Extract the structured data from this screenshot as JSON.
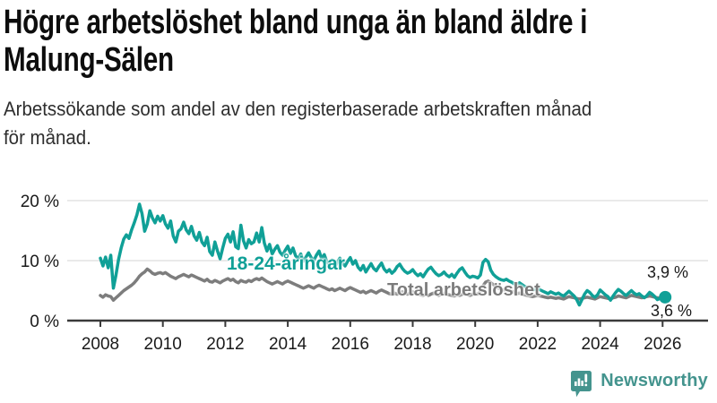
{
  "header": {
    "title_lines": [
      "Högre arbetslöshet bland unga än bland äldre i",
      "Malung-Sälen"
    ],
    "subtitle_lines": [
      "Arbetssökande som andel av den registerbaserade arbetskraften månad",
      "för månad."
    ]
  },
  "footer": {
    "brand": "Newsworthy",
    "brand_color": "#44948e"
  },
  "chart_data": {
    "type": "line",
    "title": "Högre arbetslöshet bland unga än bland äldre i Malung-Sälen",
    "subtitle": "Arbetssökande som andel av den registerbaserade arbetskraften månad för månad.",
    "x_unit": "month",
    "x_start_year": 2008,
    "x_end_label_values": [
      "3,9 %",
      "3,6 %"
    ],
    "x_ticks": [
      2008,
      2010,
      2012,
      2014,
      2016,
      2018,
      2020,
      2022,
      2024,
      2026
    ],
    "x_ticklabels": [
      "2008",
      "2010",
      "2012",
      "2014",
      "2016",
      "2018",
      "2020",
      "2022",
      "2024",
      "2026"
    ],
    "y_ticks": [
      0,
      10,
      20
    ],
    "y_ticklabels": [
      "0 %",
      "10 %",
      "20 %"
    ],
    "ylim": [
      0,
      21.5
    ],
    "grid": "horizontal",
    "legend_position": "inline-labels",
    "series": [
      {
        "name": "18-24-åringar",
        "color": "#10a097",
        "end_label": "3,9 %",
        "end_dot": true,
        "values": [
          10.4,
          9.1,
          10.6,
          8.8,
          10.9,
          5.4,
          7.6,
          10.2,
          12.1,
          13.6,
          14.3,
          13.7,
          15.1,
          16.3,
          17.6,
          19.4,
          17.8,
          14.9,
          16.1,
          18.3,
          17.1,
          16.3,
          17.4,
          16.6,
          17.5,
          16.1,
          15.4,
          16.6,
          14.1,
          13.1,
          14.9,
          15.3,
          16.4,
          15.1,
          14.5,
          15.7,
          14.1,
          13.4,
          14.7,
          13.1,
          12.5,
          13.9,
          11.5,
          10.9,
          13.1,
          11.6,
          10.3,
          12.1,
          13.7,
          14.4,
          13.1,
          14.8,
          12.3,
          12.0,
          15.9,
          13.3,
          12.1,
          13.5,
          12.8,
          13.1,
          14.6,
          13.1,
          15.5,
          12.9,
          11.6,
          12.7,
          11.1,
          11.9,
          12.5,
          11.4,
          10.9,
          11.7,
          12.4,
          11.2,
          12.1,
          10.8,
          10.3,
          11.1,
          9.9,
          10.6,
          11.3,
          10.5,
          10.0,
          10.9,
          11.6,
          10.3,
          11.0,
          9.8,
          9.3,
          10.1,
          8.9,
          9.7,
          10.4,
          9.6,
          9.1,
          9.9,
          10.5,
          9.4,
          10.0,
          8.9,
          8.4,
          9.2,
          8.1,
          8.8,
          9.5,
          8.7,
          8.3,
          9.0,
          9.6,
          8.6,
          8.1,
          8.5,
          7.9,
          8.3,
          9.0,
          9.4,
          8.7,
          8.2,
          7.9,
          8.1,
          8.5,
          7.9,
          7.5,
          7.8,
          7.3,
          8.0,
          8.6,
          8.9,
          8.3,
          7.8,
          7.5,
          7.7,
          8.1,
          7.6,
          7.3,
          7.7,
          7.2,
          7.9,
          8.5,
          8.8,
          8.1,
          7.5,
          7.2,
          7.4,
          7.3,
          7.1,
          7.6,
          9.7,
          10.2,
          9.8,
          8.4,
          7.7,
          7.3,
          7.0,
          6.8,
          6.7,
          6.9,
          6.6,
          6.4,
          6.1,
          5.9,
          6.3,
          6.0,
          5.7,
          5.5,
          5.3,
          5.1,
          5.2,
          5.4,
          5.1,
          4.9,
          4.7,
          4.5,
          4.8,
          4.6,
          4.4,
          4.6,
          4.3,
          4.1,
          4.5,
          4.9,
          4.5,
          4.1,
          3.5,
          2.6,
          3.5,
          4.4,
          5.0,
          4.7,
          4.2,
          3.9,
          4.3,
          5.1,
          4.7,
          4.3,
          4.0,
          3.4,
          4.1,
          4.7,
          5.2,
          4.9,
          4.5,
          4.2,
          4.6,
          5.0,
          4.6,
          4.3,
          4.5,
          4.1,
          3.8,
          4.2,
          4.7,
          4.4,
          4.0,
          3.5,
          3.7,
          3.6,
          3.9
        ]
      },
      {
        "name": "Total arbetslöshet",
        "color": "#7d7d7d",
        "end_label": "3,6 %",
        "end_dot": false,
        "values": [
          4.2,
          3.9,
          4.3,
          4.1,
          4.0,
          3.4,
          3.8,
          4.2,
          4.6,
          5.0,
          5.3,
          5.6,
          5.9,
          6.3,
          6.8,
          7.4,
          7.8,
          8.1,
          8.6,
          8.3,
          7.9,
          7.7,
          7.9,
          8.0,
          7.8,
          8.0,
          7.7,
          7.4,
          7.2,
          7.0,
          7.3,
          7.5,
          7.7,
          7.5,
          7.3,
          7.6,
          7.4,
          7.2,
          7.0,
          6.8,
          6.6,
          6.9,
          6.5,
          6.4,
          6.7,
          6.5,
          6.3,
          6.6,
          6.8,
          7.0,
          6.7,
          6.9,
          6.5,
          6.3,
          6.7,
          6.5,
          6.4,
          6.7,
          6.5,
          6.8,
          7.0,
          6.8,
          7.1,
          6.8,
          6.5,
          6.3,
          6.1,
          6.3,
          6.5,
          6.3,
          6.1,
          6.4,
          6.6,
          6.4,
          6.2,
          6.0,
          5.8,
          5.6,
          5.4,
          5.6,
          5.8,
          5.6,
          5.4,
          5.7,
          5.9,
          5.7,
          5.5,
          5.3,
          5.1,
          5.3,
          5.0,
          5.2,
          5.4,
          5.2,
          5.0,
          5.3,
          5.5,
          5.3,
          5.1,
          4.9,
          4.7,
          4.9,
          4.6,
          4.8,
          5.0,
          4.8,
          4.6,
          4.9,
          5.1,
          4.9,
          4.7,
          4.5,
          4.4,
          4.6,
          4.4,
          4.6,
          4.8,
          4.6,
          4.4,
          4.6,
          4.8,
          4.6,
          4.4,
          4.3,
          4.2,
          4.4,
          4.2,
          4.4,
          4.6,
          4.4,
          4.2,
          4.4,
          4.6,
          4.4,
          4.3,
          4.2,
          4.1,
          4.3,
          4.2,
          4.4,
          4.5,
          4.3,
          4.2,
          4.4,
          4.5,
          4.4,
          4.8,
          5.8,
          6.4,
          6.6,
          6.3,
          6.0,
          5.7,
          5.4,
          5.2,
          5.1,
          5.2,
          5.0,
          4.9,
          4.7,
          4.5,
          4.6,
          4.4,
          4.3,
          4.2,
          4.1,
          4.0,
          4.1,
          4.2,
          4.1,
          4.0,
          3.9,
          3.8,
          3.9,
          3.8,
          3.7,
          3.8,
          3.7,
          3.6,
          3.8,
          4.0,
          3.9,
          3.8,
          3.7,
          3.6,
          3.7,
          3.8,
          3.9,
          3.8,
          3.7,
          3.6,
          3.8,
          4.0,
          3.9,
          3.8,
          3.7,
          3.6,
          3.8,
          3.9,
          4.1,
          4.0,
          3.9,
          3.8,
          4.0,
          4.2,
          4.1,
          4.0,
          3.9,
          3.8,
          3.9,
          4.0,
          4.1,
          4.0,
          3.9,
          3.8,
          3.7,
          3.6,
          3.6
        ]
      }
    ]
  },
  "layout_colors": {
    "gridline": "#e3e3e3",
    "axis": "#3a3a3a",
    "tick_label": "#1a1a1a"
  }
}
